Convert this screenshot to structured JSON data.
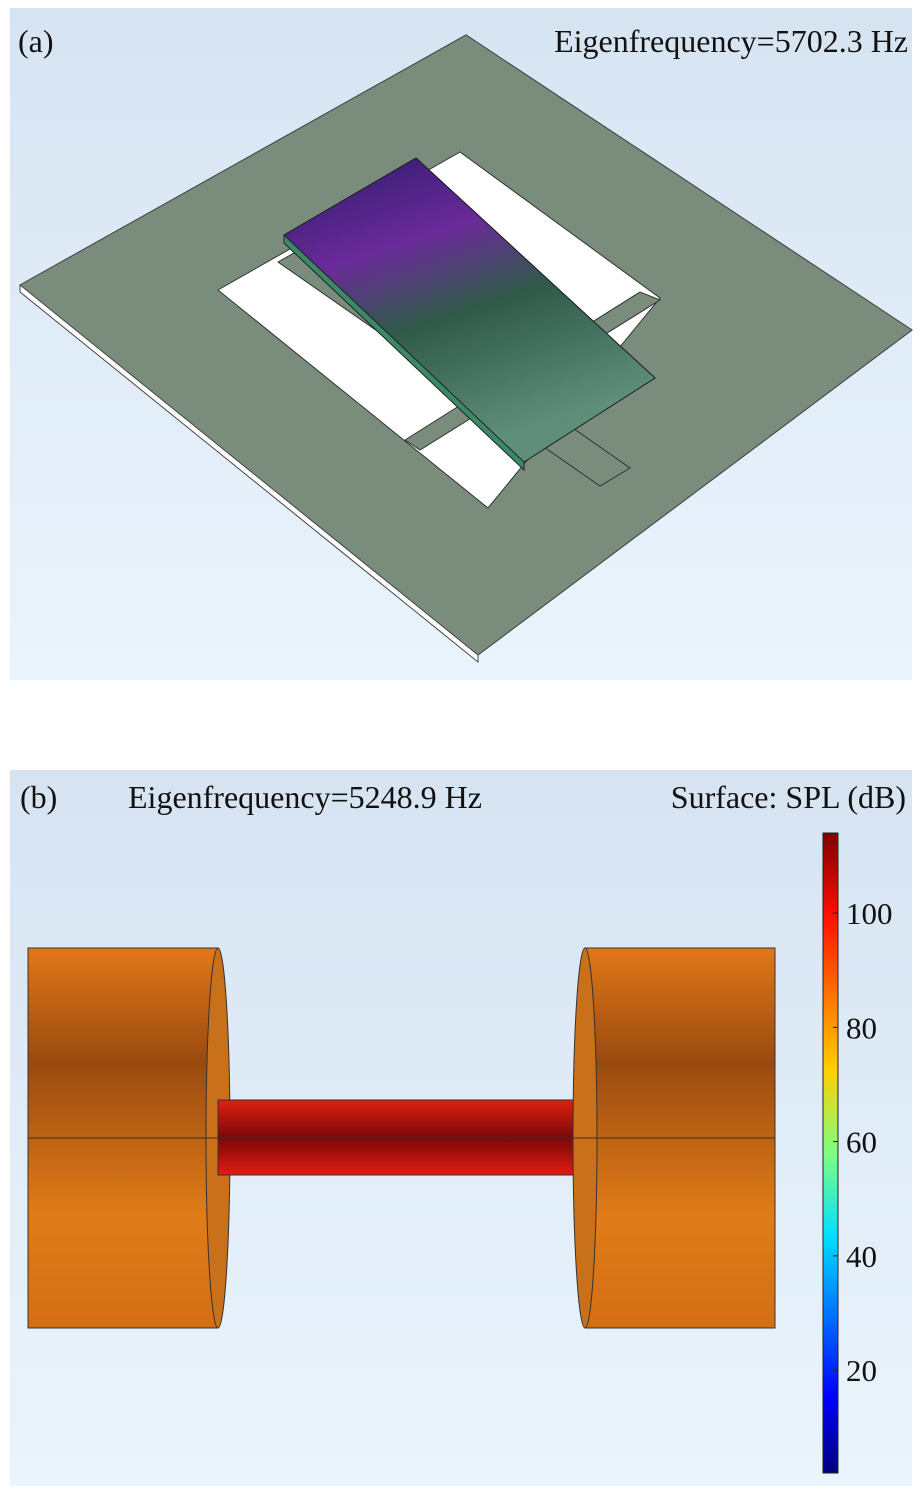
{
  "panels": [
    {
      "label": "(a)",
      "annotation": "Eigenfrequency=5702.3 Hz"
    },
    {
      "label": "(b)",
      "annotation": "Eigenfrequency=5248.9 Hz",
      "colorbar_title": "Surface: SPL (dB)",
      "colorbar": {
        "lim": [
          2,
          114
        ],
        "ticks": [
          20,
          40,
          60,
          80,
          100
        ]
      }
    }
  ]
}
